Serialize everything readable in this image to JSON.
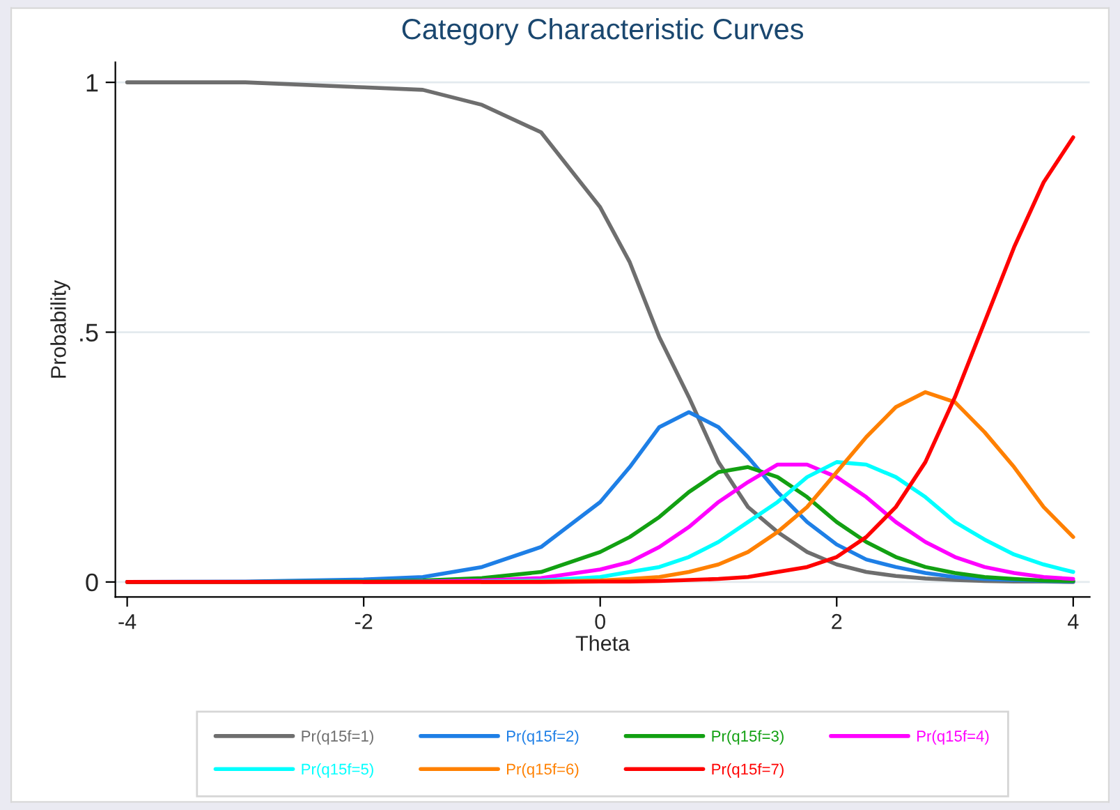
{
  "chart_data": {
    "type": "line",
    "title": "Category Characteristic Curves",
    "xlabel": "Theta",
    "ylabel": "Probability",
    "x": [
      -4,
      -3,
      -2,
      -1.5,
      -1,
      -0.5,
      0,
      0.25,
      0.5,
      0.75,
      1,
      1.25,
      1.5,
      1.75,
      2,
      2.25,
      2.5,
      2.75,
      3,
      3.25,
      3.5,
      3.75,
      4
    ],
    "series": [
      {
        "name": "Pr(q15f=1)",
        "color": "#6e6e6e",
        "values": [
          1,
          1,
          0.99,
          0.985,
          0.955,
          0.9,
          0.75,
          0.64,
          0.49,
          0.37,
          0.24,
          0.15,
          0.1,
          0.06,
          0.035,
          0.02,
          0.012,
          0.007,
          0.004,
          0.002,
          0.001,
          0.001,
          0
        ]
      },
      {
        "name": "Pr(q15f=2)",
        "color": "#1e7fe6",
        "values": [
          0,
          0.001,
          0.005,
          0.01,
          0.03,
          0.07,
          0.16,
          0.23,
          0.31,
          0.34,
          0.31,
          0.25,
          0.18,
          0.12,
          0.075,
          0.045,
          0.03,
          0.018,
          0.01,
          0.006,
          0.004,
          0.002,
          0.001
        ]
      },
      {
        "name": "Pr(q15f=3)",
        "color": "#12a012",
        "values": [
          0,
          0,
          0.001,
          0.003,
          0.008,
          0.02,
          0.06,
          0.09,
          0.13,
          0.18,
          0.22,
          0.23,
          0.21,
          0.17,
          0.12,
          0.08,
          0.05,
          0.03,
          0.018,
          0.01,
          0.006,
          0.003,
          0.002
        ]
      },
      {
        "name": "Pr(q15f=4)",
        "color": "#ff00ff",
        "values": [
          null,
          null,
          0,
          0.001,
          0.003,
          0.008,
          0.025,
          0.04,
          0.07,
          0.11,
          0.16,
          0.2,
          0.235,
          0.235,
          0.21,
          0.17,
          0.12,
          0.08,
          0.05,
          0.03,
          0.018,
          0.01,
          0.006
        ]
      },
      {
        "name": "Pr(q15f=5)",
        "color": "#00ffff",
        "values": [
          null,
          null,
          null,
          null,
          0.001,
          0.003,
          0.01,
          0.02,
          0.03,
          0.05,
          0.08,
          0.12,
          0.16,
          0.21,
          0.24,
          0.235,
          0.21,
          0.17,
          0.12,
          0.085,
          0.055,
          0.035,
          0.02
        ]
      },
      {
        "name": "Pr(q15f=6)",
        "color": "#ff8000",
        "values": [
          null,
          null,
          null,
          null,
          0,
          0.001,
          0.003,
          0.006,
          0.01,
          0.02,
          0.035,
          0.06,
          0.1,
          0.15,
          0.22,
          0.29,
          0.35,
          0.38,
          0.36,
          0.3,
          0.23,
          0.15,
          0.09
        ]
      },
      {
        "name": "Pr(q15f=7)",
        "color": "#ff0000",
        "values": [
          0,
          0,
          0,
          0,
          0,
          0,
          0.001,
          0.001,
          0.002,
          0.004,
          0.006,
          0.01,
          0.02,
          0.03,
          0.05,
          0.09,
          0.15,
          0.24,
          0.37,
          0.52,
          0.67,
          0.8,
          0.89
        ]
      }
    ],
    "xlim": [
      -4.1,
      4.14
    ],
    "ylim": [
      -0.03,
      1.04
    ],
    "xticks": [
      -4,
      -2,
      0,
      2,
      4
    ],
    "yticks": [
      0,
      {
        "value": 0.5,
        "label": ".5"
      },
      1
    ],
    "grid": "y",
    "legend": "bottom",
    "marker": "none",
    "line_style": "solid"
  }
}
